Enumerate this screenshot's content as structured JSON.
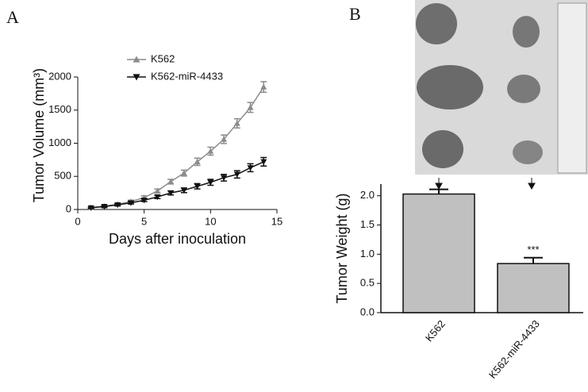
{
  "chart_data": [
    {
      "type": "line",
      "panel": "A",
      "y_label": "Tumor Volume (mm³)",
      "x_label": "Days after inoculation",
      "x": [
        1,
        2,
        3,
        4,
        5,
        6,
        7,
        8,
        9,
        10,
        11,
        12,
        13,
        14
      ],
      "series": [
        {
          "name": "K562",
          "color": "#8c8c8c",
          "marker": "triangle-up",
          "values": [
            30,
            50,
            80,
            120,
            180,
            280,
            420,
            550,
            720,
            880,
            1060,
            1300,
            1540,
            1850
          ],
          "errors": [
            10,
            12,
            15,
            20,
            25,
            30,
            35,
            45,
            55,
            60,
            65,
            70,
            75,
            80
          ]
        },
        {
          "name": "K562-miR-4433",
          "color": "#111111",
          "marker": "triangle-down",
          "values": [
            25,
            45,
            70,
            100,
            140,
            190,
            250,
            290,
            350,
            410,
            480,
            530,
            630,
            720
          ],
          "errors": [
            10,
            12,
            15,
            18,
            20,
            25,
            30,
            35,
            40,
            45,
            50,
            55,
            60,
            65
          ]
        }
      ],
      "xlim": [
        0,
        15
      ],
      "xticks": [
        0,
        5,
        10,
        15
      ],
      "ylim": [
        0,
        2000
      ],
      "yticks": [
        0,
        500,
        1000,
        1500,
        2000
      ]
    },
    {
      "type": "bar",
      "panel": "B",
      "y_label": "Tumor Weight (g)",
      "categories": [
        "K562",
        "K562-miR-4433"
      ],
      "values": [
        2.03,
        0.84
      ],
      "errors": [
        0.08,
        0.1
      ],
      "value_annotations": [
        null,
        "***"
      ],
      "color": "#c0c0c0",
      "ylim": [
        0,
        2.2
      ],
      "yticks": [
        {
          "value": 0,
          "label": "0.0"
        },
        {
          "value": 0.5,
          "label": "0.5"
        },
        {
          "value": 1,
          "label": "1.0"
        },
        {
          "value": 1.5,
          "label": "1.5"
        },
        {
          "value": 2,
          "label": "2.0"
        }
      ]
    }
  ]
}
